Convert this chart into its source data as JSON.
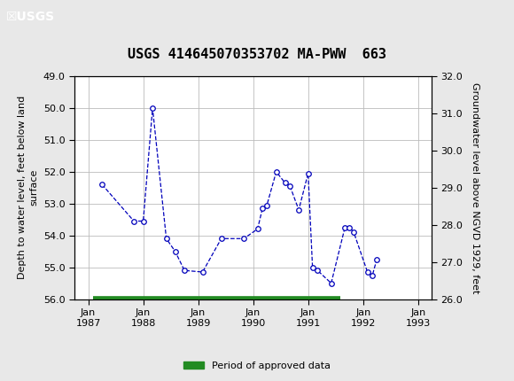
{
  "title": "USGS 414645070353702 MA-PWW  663",
  "ylabel_left": "Depth to water level, feet below land\nsurface",
  "ylabel_right": "Groundwater level above NGVD 1929, feet",
  "ylim_left": [
    56.0,
    49.0
  ],
  "ylim_right": [
    26.0,
    32.0
  ],
  "yticks_left": [
    49.0,
    50.0,
    51.0,
    52.0,
    53.0,
    54.0,
    55.0,
    56.0
  ],
  "yticks_right": [
    26.0,
    27.0,
    28.0,
    29.0,
    30.0,
    31.0,
    32.0
  ],
  "xtick_labels": [
    "Jan\n1987",
    "Jan\n1988",
    "Jan\n1989",
    "Jan\n1990",
    "Jan\n1991",
    "Jan\n1992",
    "Jan\n1993"
  ],
  "xtick_positions": [
    1987.0,
    1988.0,
    1989.0,
    1990.0,
    1991.0,
    1992.0,
    1993.0
  ],
  "xlim": [
    1986.75,
    1993.25
  ],
  "data_x": [
    1987.25,
    1987.83,
    1988.0,
    1988.17,
    1988.42,
    1988.58,
    1988.75,
    1989.08,
    1989.42,
    1989.83,
    1990.08,
    1990.17,
    1990.25,
    1990.42,
    1990.58,
    1990.67,
    1990.83,
    1991.0,
    1991.08,
    1991.17,
    1991.42,
    1991.67,
    1991.75,
    1991.83,
    1992.08,
    1992.17,
    1992.25
  ],
  "data_y": [
    52.4,
    53.55,
    53.55,
    50.0,
    54.1,
    54.5,
    55.1,
    55.15,
    54.1,
    54.1,
    53.8,
    53.15,
    53.05,
    52.0,
    52.35,
    52.45,
    53.2,
    52.05,
    55.0,
    55.1,
    55.5,
    53.75,
    53.75,
    53.9,
    55.15,
    55.25,
    54.75
  ],
  "line_color": "#0000bb",
  "marker_color": "#0000bb",
  "line_style": "--",
  "marker_style": "o",
  "marker_size": 4,
  "grid_color": "#bbbbbb",
  "background_color": "#e8e8e8",
  "plot_bg_color": "#ffffff",
  "header_color": "#006633",
  "legend_label": "Period of approved data",
  "legend_color": "#228B22",
  "approved_bar_x_start": 1987.08,
  "approved_bar_x_end": 1991.58,
  "title_fontsize": 11,
  "tick_fontsize": 8,
  "label_fontsize": 8
}
